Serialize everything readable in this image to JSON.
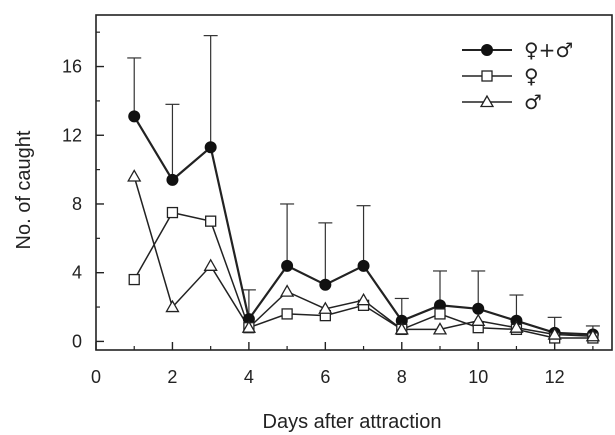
{
  "chart_data": {
    "type": "line",
    "title": "",
    "xlabel": "Days after attraction",
    "ylabel": "No. of caught",
    "xlim": [
      0,
      13.5
    ],
    "ylim": [
      -0.5,
      19
    ],
    "xticks": [
      0,
      2,
      4,
      6,
      8,
      10,
      12
    ],
    "yticks": [
      0,
      4,
      8,
      12,
      16
    ],
    "grid": false,
    "legend_position": "top-right",
    "series": [
      {
        "name": "♀+♂",
        "marker": "filled-circle",
        "x": [
          1,
          2,
          3,
          4,
          5,
          6,
          7,
          8,
          9,
          10,
          11,
          12,
          13
        ],
        "y": [
          13.1,
          9.4,
          11.3,
          1.3,
          4.4,
          3.3,
          4.4,
          1.2,
          2.1,
          1.9,
          1.2,
          0.5,
          0.4
        ],
        "error_upper": [
          16.5,
          13.8,
          17.8,
          3.0,
          8.0,
          6.9,
          7.9,
          2.5,
          4.1,
          4.1,
          2.7,
          1.4,
          0.9
        ]
      },
      {
        "name": "♀",
        "marker": "open-square",
        "x": [
          1,
          2,
          3,
          4,
          5,
          6,
          7,
          8,
          9,
          10,
          11,
          12,
          13
        ],
        "y": [
          3.6,
          7.5,
          7.0,
          0.8,
          1.6,
          1.5,
          2.1,
          0.7,
          1.6,
          0.8,
          0.7,
          0.2,
          0.2
        ]
      },
      {
        "name": "♂",
        "marker": "open-triangle",
        "x": [
          1,
          2,
          3,
          4,
          5,
          6,
          7,
          8,
          9,
          10,
          11,
          12,
          13
        ],
        "y": [
          9.6,
          2.0,
          4.4,
          0.8,
          2.9,
          1.9,
          2.4,
          0.7,
          0.7,
          1.2,
          0.8,
          0.4,
          0.3
        ]
      }
    ]
  }
}
